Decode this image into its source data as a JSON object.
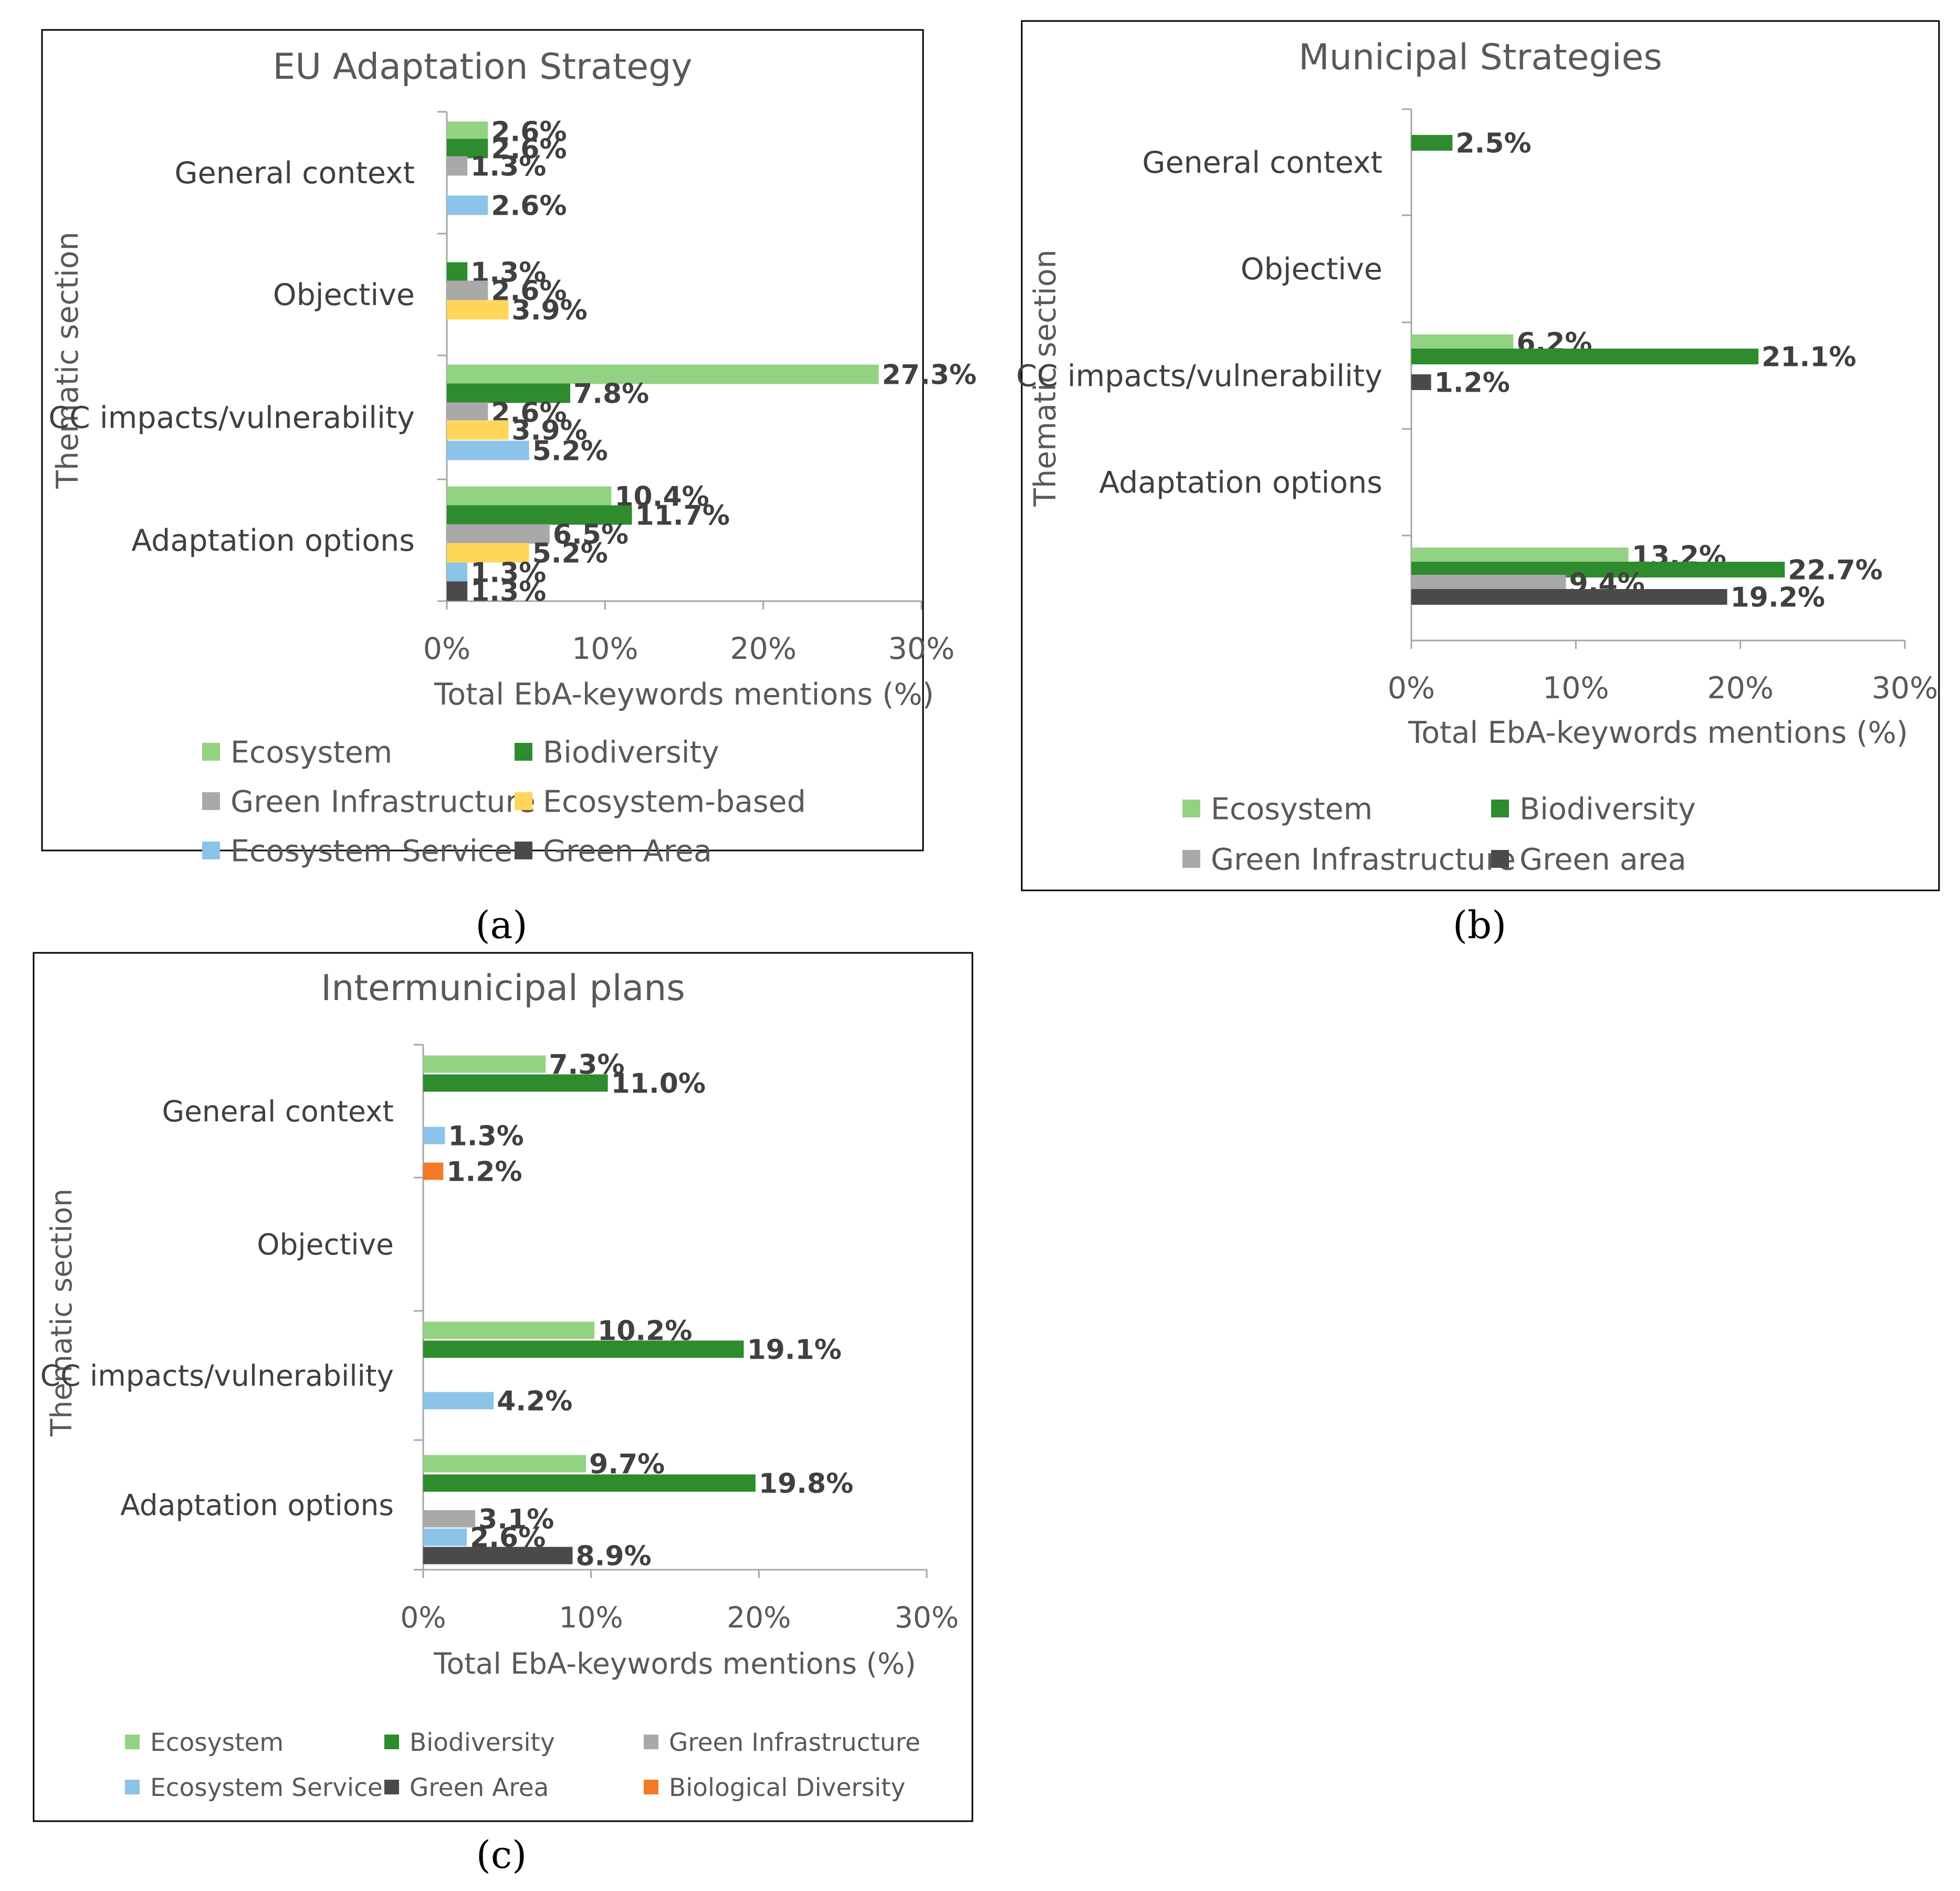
{
  "colors": {
    "Ecosystem": "#92d283",
    "Biodiversity": "#2e8b2e",
    "Green Infrastructure": "#aba8a9",
    "Ecosystem-based": "#ffd65a",
    "Ecosystem Service": "#8cc3e8",
    "Green Area": "#4a4a4a",
    "Green area": "#4a4a4a",
    "Biological Diversity": "#f47a27"
  },
  "chart_data": [
    {
      "type": "bar",
      "orientation": "horizontal",
      "title": "EU Adaptation Strategy",
      "caption": "(a)",
      "xlabel": "Total EbA-keywords mentions (%)",
      "ylabel": "Thematic section",
      "xlim": [
        0,
        30
      ],
      "xticks": [
        "0%",
        "10%",
        "20%",
        "30%"
      ],
      "categories": [
        "General context",
        "Objective",
        "CC impacts/vulnerability",
        "Adaptation options"
      ],
      "legend": [
        [
          "Ecosystem",
          "Biodiversity"
        ],
        [
          "Green Infrastructure",
          "Ecosystem-based"
        ],
        [
          "Ecosystem Service",
          "Green Area"
        ]
      ],
      "series": [
        {
          "name": "Ecosystem",
          "values": [
            2.6,
            null,
            27.3,
            10.4
          ],
          "labels": [
            "2.6%",
            null,
            "27.3%",
            "10.4%"
          ]
        },
        {
          "name": "Biodiversity",
          "values": [
            2.6,
            1.3,
            7.8,
            11.7
          ],
          "labels": [
            "2.6%",
            "1.3%",
            "7.8%",
            "11.7%"
          ]
        },
        {
          "name": "Green Infrastructure",
          "values": [
            1.3,
            2.6,
            2.6,
            6.5
          ],
          "labels": [
            "1.3%",
            "2.6%",
            "2.6%",
            "6.5%"
          ]
        },
        {
          "name": "Ecosystem-based",
          "values": [
            null,
            3.9,
            3.9,
            5.2
          ],
          "labels": [
            null,
            "3.9%",
            "3.9%",
            "5.2%"
          ]
        },
        {
          "name": "Ecosystem Service",
          "values": [
            2.6,
            null,
            5.2,
            1.3
          ],
          "labels": [
            "2.6%",
            null,
            "5.2%",
            "1.3%"
          ]
        },
        {
          "name": "Green Area",
          "values": [
            null,
            null,
            null,
            1.3
          ],
          "labels": [
            null,
            null,
            null,
            "1.3%"
          ]
        }
      ]
    },
    {
      "type": "bar",
      "orientation": "horizontal",
      "title": "Municipal Strategies",
      "caption": "(b)",
      "xlabel": "Total EbA-keywords mentions (%)",
      "ylabel": "Thematic section",
      "xlim": [
        0,
        30
      ],
      "xticks": [
        "0%",
        "10%",
        "20%",
        "30%"
      ],
      "categories": [
        "General context",
        "Objective",
        "CC impacts/vulnerability",
        "Adaptation options"
      ],
      "legend": [
        [
          "Ecosystem",
          "Biodiversity"
        ],
        [
          "Green Infrastructure",
          "Green area"
        ]
      ],
      "series": [
        {
          "name": "Ecosystem",
          "values": [
            null,
            null,
            6.2,
            13.2
          ],
          "labels": [
            null,
            null,
            "6.2%",
            "13.2%"
          ]
        },
        {
          "name": "Biodiversity",
          "values": [
            2.5,
            null,
            21.1,
            22.7
          ],
          "labels": [
            "2.5%",
            null,
            "21.1%",
            "22.7%"
          ]
        },
        {
          "name": "Green Infrastructure",
          "values": [
            null,
            null,
            null,
            9.4
          ],
          "labels": [
            null,
            null,
            null,
            "9.4%"
          ]
        },
        {
          "name": "Green area",
          "values": [
            null,
            null,
            1.2,
            19.2
          ],
          "labels": [
            null,
            null,
            "1.2%",
            "19.2%"
          ]
        }
      ]
    },
    {
      "type": "bar",
      "orientation": "horizontal",
      "title": "Intermunicipal plans",
      "caption": "(c)",
      "xlabel": "Total EbA-keywords mentions (%)",
      "ylabel": "Thematic section",
      "xlim": [
        0,
        30
      ],
      "xticks": [
        "0%",
        "10%",
        "20%",
        "30%"
      ],
      "categories": [
        "General context",
        "Objective",
        "CC impacts/vulnerability",
        "Adaptation options"
      ],
      "legend": [
        [
          "Ecosystem",
          "Biodiversity",
          "Green Infrastructure"
        ],
        [
          "Ecosystem Service",
          "Green Area",
          "Biological Diversity"
        ]
      ],
      "series": [
        {
          "name": "Ecosystem",
          "values": [
            7.3,
            null,
            10.2,
            9.7
          ],
          "labels": [
            "7.3%",
            null,
            "10.2%",
            "9.7%"
          ]
        },
        {
          "name": "Biodiversity",
          "values": [
            11.0,
            null,
            19.1,
            19.8
          ],
          "labels": [
            "11.0%",
            null,
            "19.1%",
            "19.8%"
          ]
        },
        {
          "name": "Green Infrastructure",
          "values": [
            null,
            null,
            null,
            3.1
          ],
          "labels": [
            null,
            null,
            null,
            "3.1%"
          ]
        },
        {
          "name": "Ecosystem Service",
          "values": [
            1.3,
            null,
            4.2,
            2.6
          ],
          "labels": [
            "1.3%",
            null,
            "4.2%",
            "2.6%"
          ]
        },
        {
          "name": "Green Area",
          "values": [
            null,
            null,
            null,
            8.9
          ],
          "labels": [
            null,
            null,
            null,
            "8.9%"
          ]
        },
        {
          "name": "Biological Diversity",
          "values": [
            1.2,
            null,
            null,
            null
          ],
          "labels": [
            "1.2%",
            null,
            null,
            null
          ]
        }
      ]
    }
  ]
}
